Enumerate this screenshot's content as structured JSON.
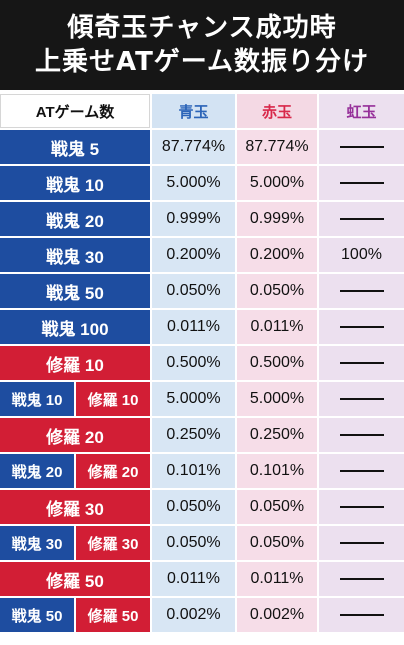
{
  "title": {
    "line1": "傾奇玉チャンス成功時",
    "line2": "上乗せATゲーム数振り分け"
  },
  "table": {
    "headers": {
      "label": "ATゲーム数",
      "blue": "青玉",
      "red": "赤玉",
      "rainbow": "虹玉"
    },
    "rows": [
      {
        "type": "blue",
        "label": "戦鬼 5",
        "blue": "87.774%",
        "red": "87.774%",
        "rainbow": ""
      },
      {
        "type": "blue",
        "label": "戦鬼 10",
        "blue": "5.000%",
        "red": "5.000%",
        "rainbow": ""
      },
      {
        "type": "blue",
        "label": "戦鬼 20",
        "blue": "0.999%",
        "red": "0.999%",
        "rainbow": ""
      },
      {
        "type": "blue",
        "label": "戦鬼 30",
        "blue": "0.200%",
        "red": "0.200%",
        "rainbow": "100%"
      },
      {
        "type": "blue",
        "label": "戦鬼 50",
        "blue": "0.050%",
        "red": "0.050%",
        "rainbow": ""
      },
      {
        "type": "blue",
        "label": "戦鬼 100",
        "blue": "0.011%",
        "red": "0.011%",
        "rainbow": ""
      },
      {
        "type": "red",
        "label": "修羅 10",
        "blue": "0.500%",
        "red": "0.500%",
        "rainbow": ""
      },
      {
        "type": "split",
        "label_a": "戦鬼 10",
        "label_b": "修羅 10",
        "blue": "5.000%",
        "red": "5.000%",
        "rainbow": ""
      },
      {
        "type": "red",
        "label": "修羅 20",
        "blue": "0.250%",
        "red": "0.250%",
        "rainbow": ""
      },
      {
        "type": "split",
        "label_a": "戦鬼 20",
        "label_b": "修羅 20",
        "blue": "0.101%",
        "red": "0.101%",
        "rainbow": ""
      },
      {
        "type": "red",
        "label": "修羅 30",
        "blue": "0.050%",
        "red": "0.050%",
        "rainbow": ""
      },
      {
        "type": "split",
        "label_a": "戦鬼 30",
        "label_b": "修羅 30",
        "blue": "0.050%",
        "red": "0.050%",
        "rainbow": ""
      },
      {
        "type": "red",
        "label": "修羅 50",
        "blue": "0.011%",
        "red": "0.011%",
        "rainbow": ""
      },
      {
        "type": "split",
        "label_a": "戦鬼 50",
        "label_b": "修羅 50",
        "blue": "0.002%",
        "red": "0.002%",
        "rainbow": ""
      }
    ]
  },
  "colors": {
    "header_bg": "#161616",
    "label_blue": "#1e4da0",
    "label_red": "#d21e35",
    "col_blue_bg": "#d8e6f4",
    "col_red_bg": "#f6dde8",
    "col_rainbow_bg": "#ece0ef"
  }
}
